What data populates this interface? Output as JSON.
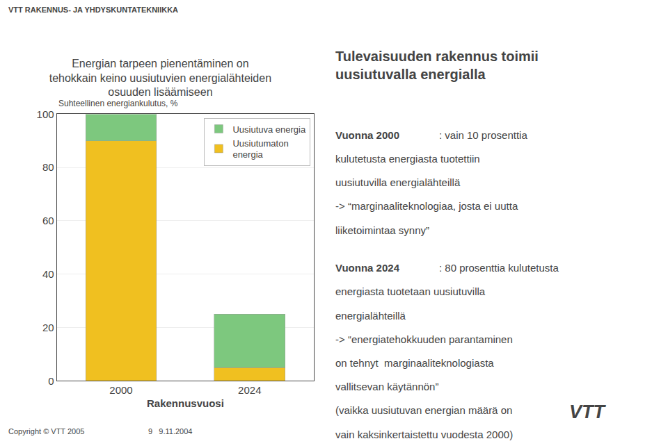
{
  "chart_data": {
    "type": "bar",
    "title": "Energian tarpeen pienentäminen on\ntehokkain keino uusiutuvien energialähteiden\nosuuden lisäämiseen",
    "xlabel": "Rakennusvuosi",
    "ylabel": "Suhteellinen energiankulutus, %",
    "categories": [
      "2000",
      "2024"
    ],
    "series": [
      {
        "name": "Uusiutumaton\nenergia",
        "color": "#f0c020",
        "values": [
          90,
          5
        ]
      },
      {
        "name": "Uusiutuva energia",
        "color": "#7dc87e",
        "values": [
          10,
          20
        ]
      }
    ],
    "stacked": true,
    "ylim": [
      0,
      100
    ],
    "yticks": [
      0,
      20,
      40,
      60,
      80,
      100
    ],
    "grid": true,
    "legend": "upper right",
    "annotations": [
      "VTT RAKENNUS- JA YHDYSKUNTATEKNIIKKA",
      "Tulevaisuuden rakennus toimii\nuusiutuvalla energialla",
      "Vuonna 2000",
      ": vain 10 prosenttia",
      "kulutetusta energiasta tuotettiin",
      "uusiutuvilla energialähteillä",
      "-> “marginaaliteknologiaa, josta ei uutta",
      "liiketoimintaa synny”",
      "Vuonna 2024",
      ": 80 prosenttia kulutetusta",
      "energiasta tuotetaan uusiutuvilla",
      "energialähteillä",
      "-> “energiatehokkuuden parantaminen",
      "on tehnyt  marginaaliteknologiasta",
      "vallitsevan käytännön”",
      "(vaikka uusiutuvan energian määrä on",
      "vain kaksinkertaistettu vuodesta 2000)",
      "VTT",
      "Copyright © VTT 2005",
      "9   9.11.2004"
    ]
  }
}
